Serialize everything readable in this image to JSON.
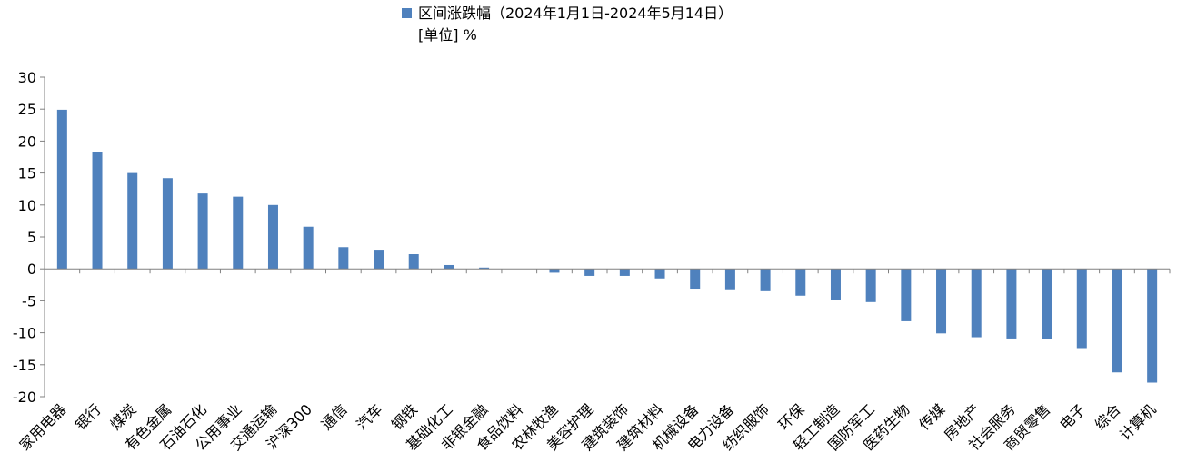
{
  "chart_data": {
    "type": "bar",
    "legend": {
      "position": "top-center",
      "entries": [
        {
          "label": "区间涨跌幅（2024年1月1日-2024年5月14日）",
          "color": "#4F81BD"
        }
      ],
      "unit_note": "[单位] %"
    },
    "title": "",
    "xlabel": "",
    "ylabel": "",
    "ylim": [
      -20,
      30
    ],
    "yticks": [
      30,
      25,
      20,
      15,
      10,
      5,
      0,
      -5,
      -10,
      -15,
      -20
    ],
    "grid": false,
    "bar_color": "#4F81BD",
    "categories": [
      "家用电器",
      "银行",
      "煤炭",
      "有色金属",
      "石油石化",
      "公用事业",
      "交通运输",
      "沪深300",
      "通信",
      "汽车",
      "钢铁",
      "基础化工",
      "非银金融",
      "食品饮料",
      "农林牧渔",
      "美容护理",
      "建筑装饰",
      "建筑材料",
      "机械设备",
      "电力设备",
      "纺织服饰",
      "环保",
      "轻工制造",
      "国防军工",
      "医药生物",
      "传媒",
      "房地产",
      "社会服务",
      "商贸零售",
      "电子",
      "综合",
      "计算机"
    ],
    "series": [
      {
        "name": "区间涨跌幅（2024年1月1日-2024年5月14日）",
        "values": [
          24.9,
          18.3,
          15.0,
          14.2,
          11.8,
          11.3,
          10.0,
          6.6,
          3.4,
          3.0,
          2.3,
          0.6,
          0.2,
          0.0,
          -0.6,
          -1.1,
          -1.1,
          -1.5,
          -3.1,
          -3.2,
          -3.5,
          -4.2,
          -4.8,
          -5.2,
          -8.2,
          -10.1,
          -10.7,
          -10.9,
          -11.0,
          -12.4,
          -16.2,
          -17.8
        ]
      }
    ]
  }
}
